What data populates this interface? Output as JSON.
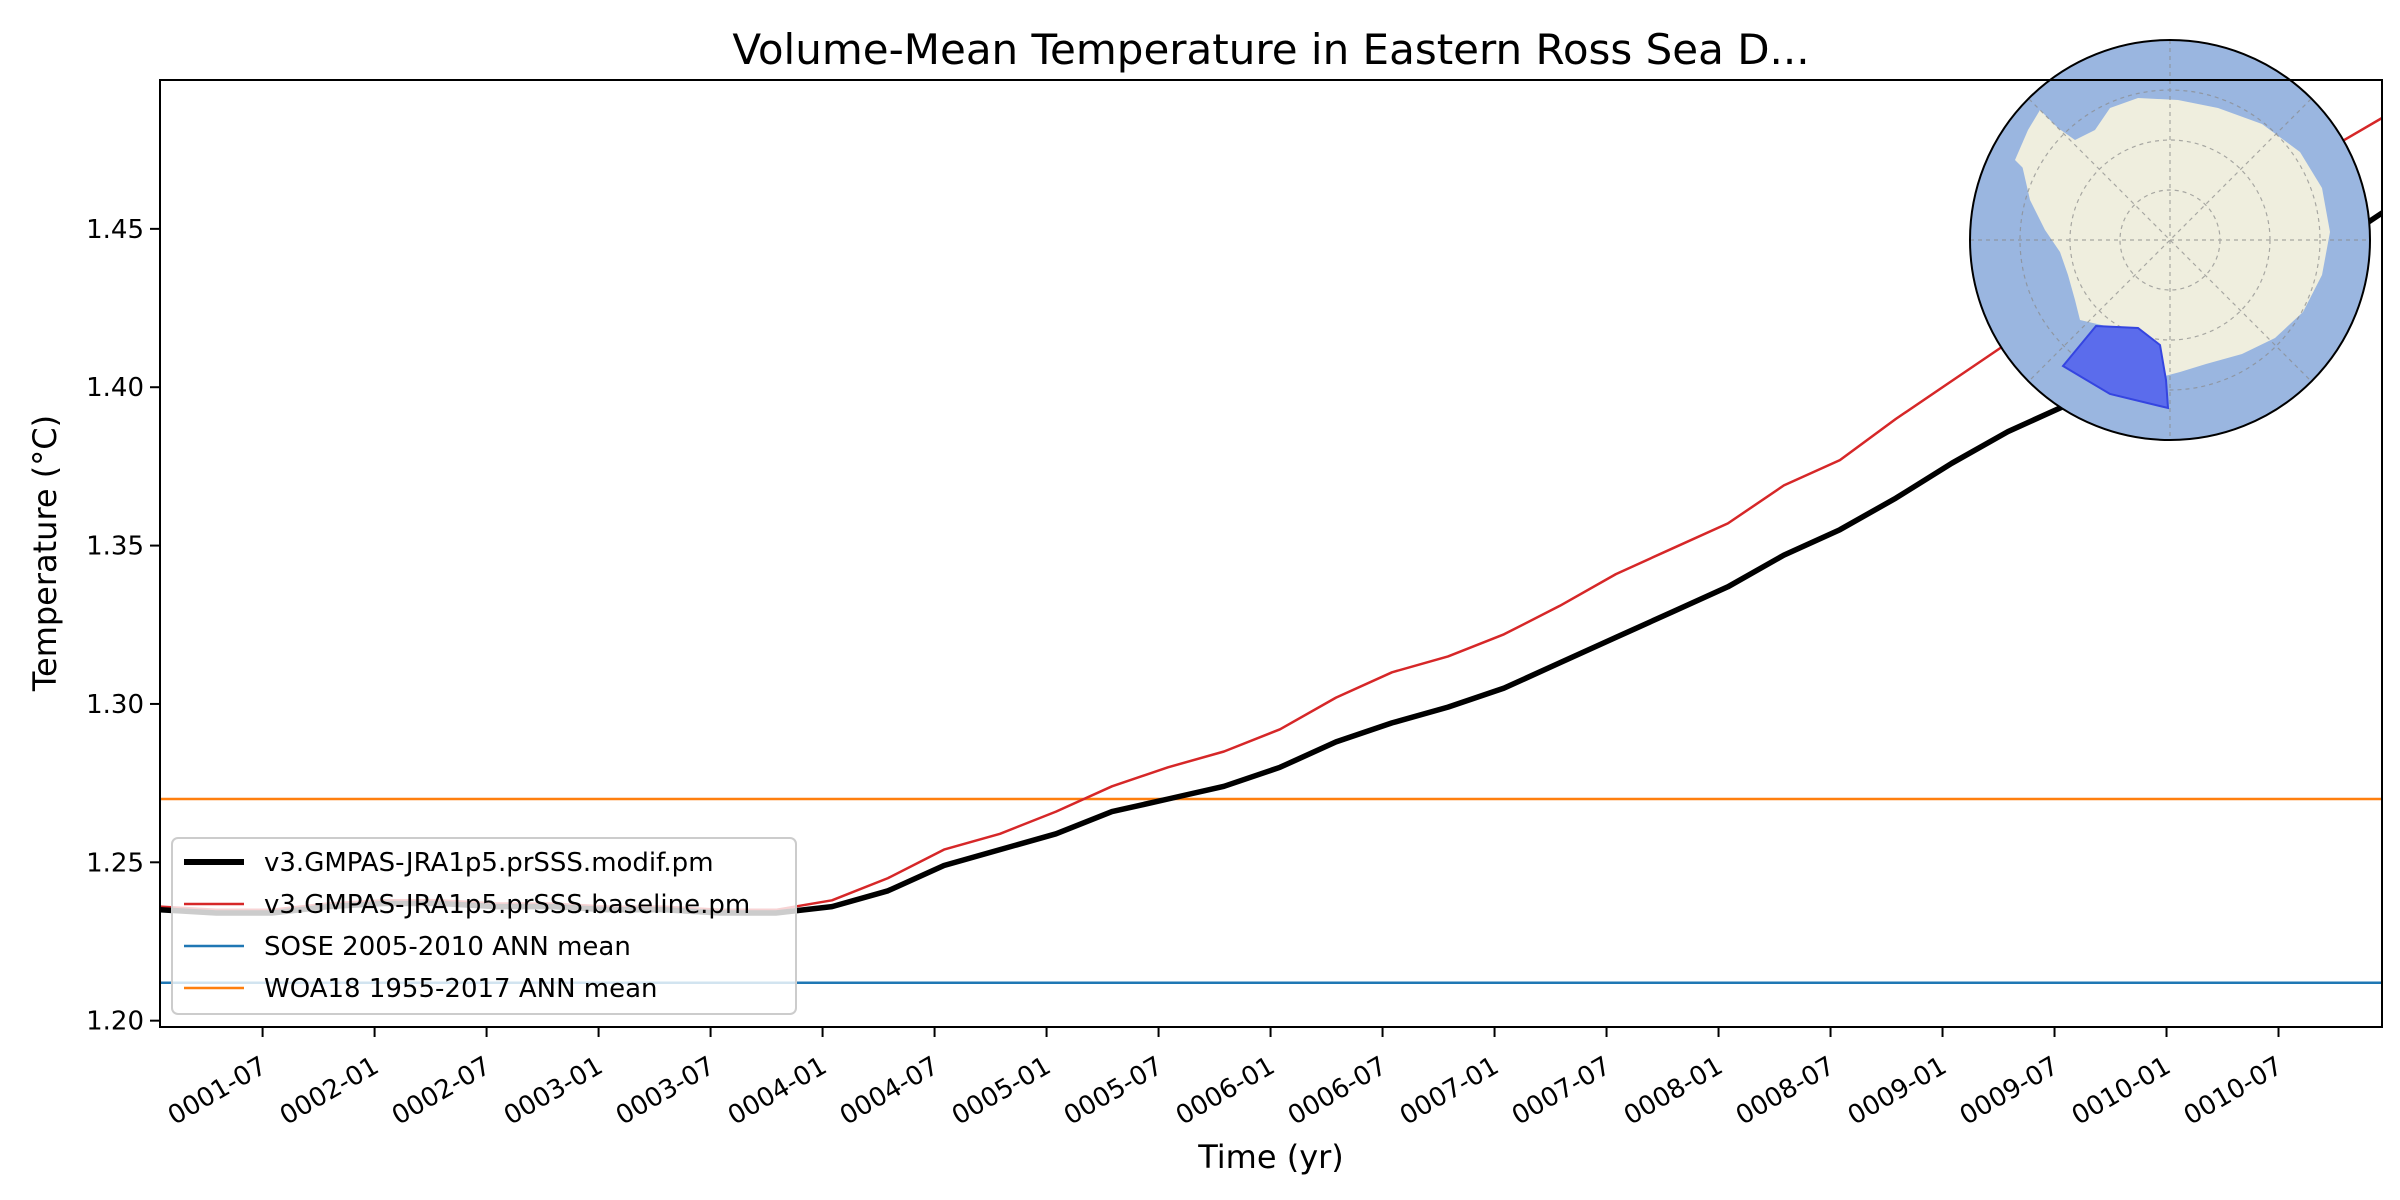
{
  "chart_data": {
    "type": "line",
    "title": "Volume-Mean Temperature in Eastern Ross Sea D...",
    "xlabel": "Time (yr)",
    "ylabel": "Temperature (°C)",
    "xlim": [
      0.5,
      10.42
    ],
    "ylim": [
      1.198,
      1.497
    ],
    "x_ticks": [
      {
        "x": 0.958,
        "label": "0001-07"
      },
      {
        "x": 1.458,
        "label": "0002-01"
      },
      {
        "x": 1.958,
        "label": "0002-07"
      },
      {
        "x": 2.458,
        "label": "0003-01"
      },
      {
        "x": 2.958,
        "label": "0003-07"
      },
      {
        "x": 3.458,
        "label": "0004-01"
      },
      {
        "x": 3.958,
        "label": "0004-07"
      },
      {
        "x": 4.458,
        "label": "0005-01"
      },
      {
        "x": 4.958,
        "label": "0005-07"
      },
      {
        "x": 5.458,
        "label": "0006-01"
      },
      {
        "x": 5.958,
        "label": "0006-07"
      },
      {
        "x": 6.458,
        "label": "0007-01"
      },
      {
        "x": 6.958,
        "label": "0007-07"
      },
      {
        "x": 7.458,
        "label": "0008-01"
      },
      {
        "x": 7.958,
        "label": "0008-07"
      },
      {
        "x": 8.458,
        "label": "0009-01"
      },
      {
        "x": 8.958,
        "label": "0009-07"
      },
      {
        "x": 9.458,
        "label": "0010-01"
      },
      {
        "x": 9.958,
        "label": "0010-07"
      }
    ],
    "y_ticks": [
      {
        "y": 1.2,
        "label": "1.20"
      },
      {
        "y": 1.25,
        "label": "1.25"
      },
      {
        "y": 1.3,
        "label": "1.30"
      },
      {
        "y": 1.35,
        "label": "1.35"
      },
      {
        "y": 1.4,
        "label": "1.40"
      },
      {
        "y": 1.45,
        "label": "1.45"
      }
    ],
    "series": [
      {
        "name": "v3.GMPAS-JRA1p5.prSSS.modif.pm",
        "color": "#000000",
        "style": "thick",
        "x": [
          0.5,
          0.75,
          1.0,
          1.25,
          1.5,
          1.75,
          2.0,
          2.25,
          2.5,
          2.75,
          3.0,
          3.25,
          3.5,
          3.75,
          4.0,
          4.25,
          4.5,
          4.75,
          5.0,
          5.25,
          5.5,
          5.75,
          6.0,
          6.25,
          6.5,
          6.75,
          7.0,
          7.25,
          7.5,
          7.75,
          8.0,
          8.25,
          8.5,
          8.75,
          9.0,
          9.25,
          9.5,
          9.75,
          10.0,
          10.25,
          10.42
        ],
        "y": [
          1.235,
          1.234,
          1.234,
          1.236,
          1.237,
          1.237,
          1.236,
          1.236,
          1.235,
          1.235,
          1.234,
          1.234,
          1.236,
          1.241,
          1.249,
          1.254,
          1.259,
          1.266,
          1.27,
          1.274,
          1.28,
          1.288,
          1.294,
          1.299,
          1.305,
          1.313,
          1.321,
          1.329,
          1.337,
          1.347,
          1.355,
          1.365,
          1.376,
          1.386,
          1.394,
          1.403,
          1.413,
          1.424,
          1.435,
          1.447,
          1.455
        ]
      },
      {
        "name": "v3.GMPAS-JRA1p5.prSSS.baseline.pm",
        "color": "#d62728",
        "style": "thin",
        "x": [
          0.5,
          0.75,
          1.0,
          1.25,
          1.5,
          1.75,
          2.0,
          2.25,
          2.5,
          2.75,
          3.0,
          3.25,
          3.5,
          3.75,
          4.0,
          4.25,
          4.5,
          4.75,
          5.0,
          5.25,
          5.5,
          5.75,
          6.0,
          6.25,
          6.5,
          6.75,
          7.0,
          7.25,
          7.5,
          7.75,
          8.0,
          8.25,
          8.5,
          8.75,
          9.0,
          9.25,
          9.5,
          9.75,
          10.0,
          10.25,
          10.42
        ],
        "y": [
          1.236,
          1.235,
          1.235,
          1.237,
          1.238,
          1.238,
          1.237,
          1.237,
          1.236,
          1.236,
          1.235,
          1.235,
          1.238,
          1.245,
          1.254,
          1.259,
          1.266,
          1.274,
          1.28,
          1.285,
          1.292,
          1.302,
          1.31,
          1.315,
          1.322,
          1.331,
          1.341,
          1.349,
          1.357,
          1.369,
          1.377,
          1.39,
          1.402,
          1.414,
          1.425,
          1.437,
          1.447,
          1.458,
          1.467,
          1.478,
          1.485
        ]
      },
      {
        "name": "SOSE 2005-2010 ANN mean",
        "color": "#1f77b4",
        "style": "hline",
        "x": [
          0.5,
          10.42
        ],
        "y": [
          1.212,
          1.212
        ]
      },
      {
        "name": "WOA18 1955-2017 ANN mean",
        "color": "#ff7f0e",
        "style": "hline",
        "x": [
          0.5,
          10.42
        ],
        "y": [
          1.27,
          1.27
        ]
      }
    ],
    "legend": {
      "placement": "lower-left"
    },
    "inset_map": {
      "type": "south-polar-stereographic",
      "highlighted_region": "Eastern Ross Sea",
      "ocean_color": "#9ab6e0",
      "land_color": "#efeede",
      "region_color": "#5b6cec"
    }
  }
}
